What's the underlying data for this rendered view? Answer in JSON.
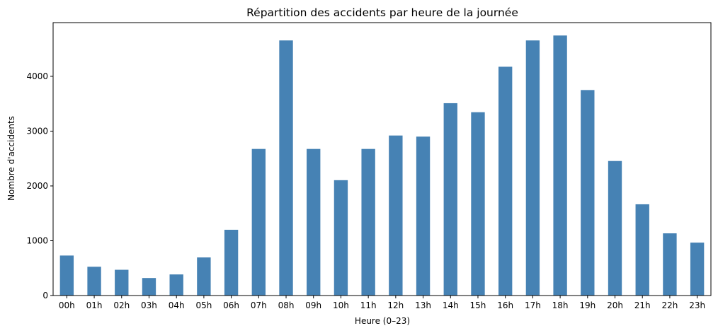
{
  "chart_data": {
    "type": "bar",
    "title": "Répartition des accidents par heure de la journée",
    "xlabel": "Heure (0–23)",
    "ylabel": "Nombre d'accidents",
    "categories": [
      "00h",
      "01h",
      "02h",
      "03h",
      "04h",
      "05h",
      "06h",
      "07h",
      "08h",
      "09h",
      "10h",
      "11h",
      "12h",
      "13h",
      "14h",
      "15h",
      "16h",
      "17h",
      "18h",
      "19h",
      "20h",
      "21h",
      "22h",
      "23h"
    ],
    "values": [
      730,
      525,
      470,
      320,
      385,
      695,
      1200,
      2675,
      4655,
      2675,
      2105,
      2675,
      2920,
      2900,
      3510,
      3345,
      4175,
      4655,
      4745,
      3750,
      2455,
      1665,
      1135,
      965
    ],
    "ylim": [
      0,
      4980
    ],
    "yticks": [
      0,
      1000,
      2000,
      3000,
      4000
    ],
    "bar_color": "#4682b4",
    "grid": false,
    "legend": "none"
  }
}
